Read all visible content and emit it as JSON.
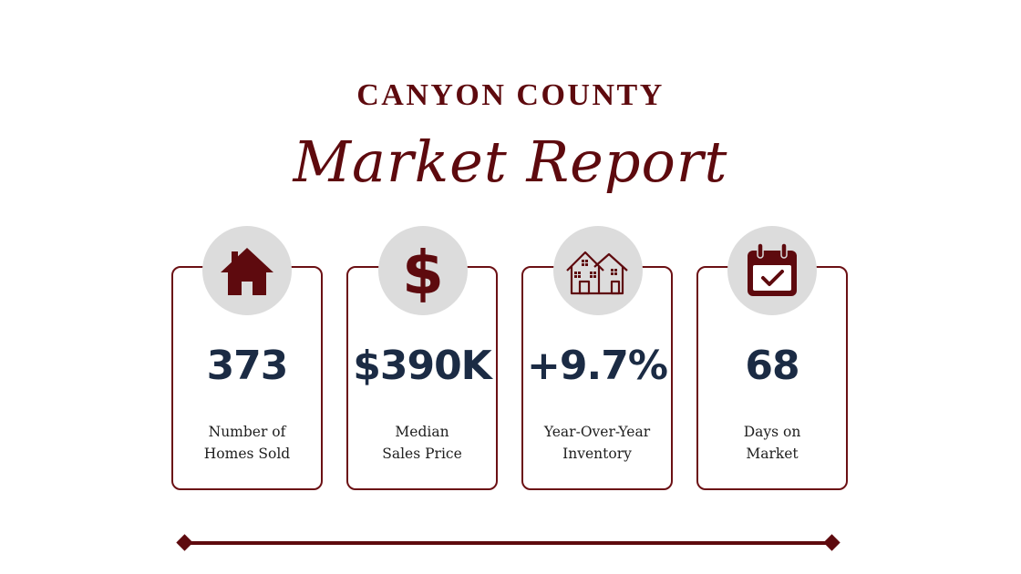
{
  "header": {
    "title": "CANYON COUNTY",
    "subtitle": "Market Report"
  },
  "colors": {
    "accent": "#5e0a0e",
    "value_text": "#1b2b44",
    "icon_circle": "#dcdcdc"
  },
  "stats": [
    {
      "icon": "house-icon",
      "value": "373",
      "label_line1": "Number of",
      "label_line2": "Homes Sold"
    },
    {
      "icon": "dollar-sign-icon",
      "value": "$390K",
      "label_line1": "Median",
      "label_line2": "Sales Price"
    },
    {
      "icon": "houses-icon",
      "value": "+9.7%",
      "label_line1": "Year-Over-Year",
      "label_line2": "Inventory"
    },
    {
      "icon": "calendar-check-icon",
      "value": "68",
      "label_line1": "Days on",
      "label_line2": "Market"
    }
  ]
}
